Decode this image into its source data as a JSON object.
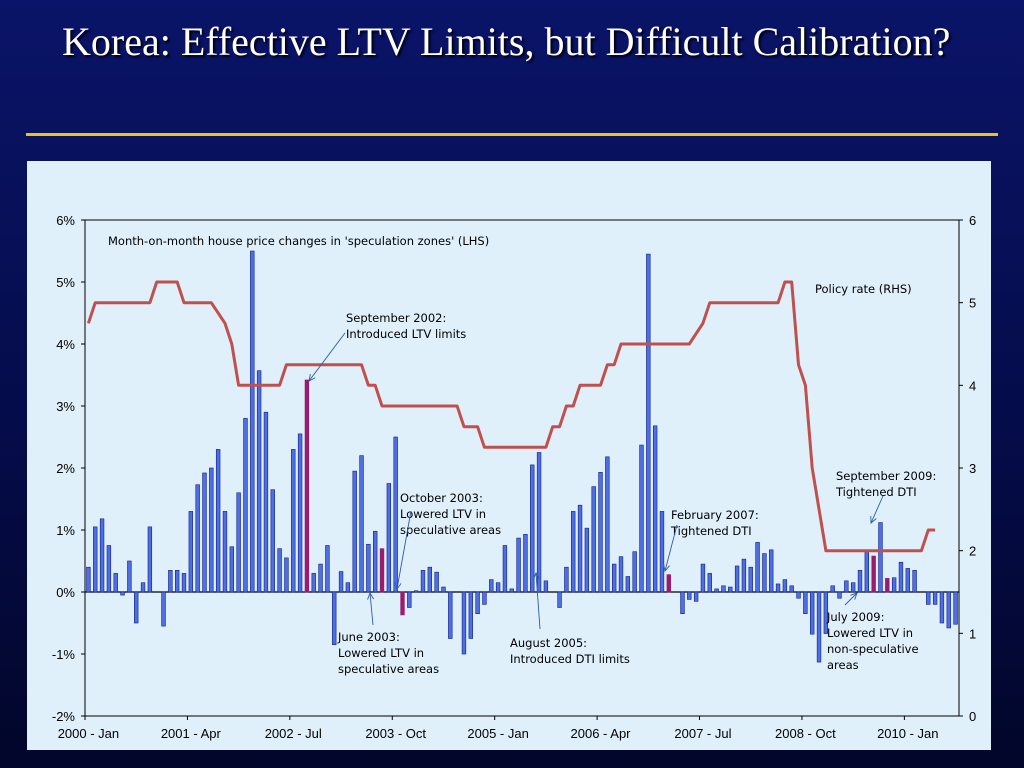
{
  "slide": {
    "title": "Korea: Effective LTV Limits, but Difficult Calibration?"
  },
  "colors": {
    "bar_fill": "#4f6fe0",
    "bar_edge": "#0d1f8c",
    "event_bar": "#9b1b6e",
    "policy_line": "#c0504d",
    "accent_rule": "#f0c020"
  },
  "chart_data": {
    "type": "bar+line",
    "x_tick_labels": [
      "2000 - Jan",
      "2001 - Apr",
      "2002 - Jul",
      "2003 - Oct",
      "2005 - Jan",
      "2006 - Apr",
      "2007 - Jul",
      "2008 - Oct",
      "2010 - Jan"
    ],
    "y_left": {
      "ticks": [
        "6%",
        "5%",
        "4%",
        "3%",
        "2%",
        "1%",
        "0%",
        "-1%",
        "-2%"
      ],
      "range": [
        -2,
        6
      ]
    },
    "y_right": {
      "ticks": [
        "6",
        "5",
        "4",
        "3",
        "2",
        "1",
        "0"
      ],
      "range": [
        0,
        6
      ]
    },
    "series": [
      {
        "name": "Month-on-month house price changes in 'speculation zones' (LHS)",
        "axis": "left",
        "kind": "bar",
        "values": [
          0.4,
          1.05,
          1.18,
          0.75,
          0.3,
          -0.05,
          0.5,
          -0.5,
          0.15,
          1.05,
          0.0,
          -0.55,
          0.35,
          0.35,
          0.3,
          1.3,
          1.73,
          1.92,
          2.0,
          2.3,
          1.3,
          0.73,
          1.6,
          2.8,
          5.5,
          3.57,
          2.9,
          1.65,
          0.7,
          0.55,
          2.3,
          2.55,
          3.42,
          0.3,
          0.45,
          0.75,
          -0.85,
          0.33,
          0.15,
          1.95,
          2.2,
          0.77,
          0.98,
          0.7,
          1.75,
          2.5,
          -0.37,
          -0.25,
          0.02,
          0.35,
          0.4,
          0.32,
          0.08,
          -0.75,
          0.0,
          -1.0,
          -0.75,
          -0.35,
          -0.2,
          0.2,
          0.15,
          0.75,
          0.05,
          0.87,
          0.93,
          2.05,
          2.25,
          0.18,
          0.0,
          -0.25,
          0.4,
          1.3,
          1.4,
          1.03,
          1.7,
          1.93,
          2.18,
          0.45,
          0.57,
          0.25,
          0.65,
          2.37,
          5.45,
          2.68,
          1.3,
          0.28,
          0.0,
          -0.35,
          -0.12,
          -0.15,
          0.45,
          0.3,
          0.05,
          0.1,
          0.08,
          0.42,
          0.53,
          0.4,
          0.8,
          0.62,
          0.68,
          0.13,
          0.2,
          0.1,
          -0.1,
          -0.35,
          -0.68,
          -1.13,
          -0.67,
          0.1,
          -0.1,
          0.18,
          0.15,
          0.35,
          0.68,
          0.58,
          1.12,
          0.22,
          0.23,
          0.48,
          0.38,
          0.35,
          0.0,
          -0.2,
          -0.2,
          -0.5,
          -0.58,
          -0.52
        ],
        "highlight_indices": [
          32,
          43,
          46,
          68,
          85,
          115,
          117
        ]
      },
      {
        "name": "Policy rate (RHS)",
        "axis": "right",
        "kind": "line",
        "points": [
          [
            0,
            4.75
          ],
          [
            1,
            5.0
          ],
          [
            9,
            5.0
          ],
          [
            10,
            5.25
          ],
          [
            13,
            5.25
          ],
          [
            14,
            5.0
          ],
          [
            18,
            5.0
          ],
          [
            20,
            4.75
          ],
          [
            21,
            4.5
          ],
          [
            22,
            4.0
          ],
          [
            28,
            4.0
          ],
          [
            29,
            4.25
          ],
          [
            40,
            4.25
          ],
          [
            41,
            4.0
          ],
          [
            42,
            4.0
          ],
          [
            43,
            3.75
          ],
          [
            54,
            3.75
          ],
          [
            55,
            3.5
          ],
          [
            57,
            3.5
          ],
          [
            58,
            3.25
          ],
          [
            67,
            3.25
          ],
          [
            68,
            3.5
          ],
          [
            69,
            3.5
          ],
          [
            70,
            3.75
          ],
          [
            71,
            3.75
          ],
          [
            72,
            4.0
          ],
          [
            75,
            4.0
          ],
          [
            76,
            4.25
          ],
          [
            77,
            4.25
          ],
          [
            78,
            4.5
          ],
          [
            88,
            4.5
          ],
          [
            90,
            4.75
          ],
          [
            91,
            5.0
          ],
          [
            101,
            5.0
          ],
          [
            102,
            5.25
          ],
          [
            103,
            5.25
          ],
          [
            104,
            4.25
          ],
          [
            105,
            4.0
          ],
          [
            106,
            3.0
          ],
          [
            108,
            2.0
          ],
          [
            122,
            2.0
          ],
          [
            123,
            2.25
          ],
          [
            124,
            2.25
          ]
        ]
      }
    ],
    "annotations": [
      {
        "lines": [
          "Month-on-month house price changes in 'speculation zones' (LHS)"
        ]
      },
      {
        "lines": [
          "Policy rate (RHS)"
        ]
      },
      {
        "lines": [
          "September 2002:",
          "Introduced LTV limits"
        ]
      },
      {
        "lines": [
          "October 2003:",
          "Lowered LTV in",
          "speculative areas"
        ]
      },
      {
        "lines": [
          "June 2003:",
          "Lowered LTV in",
          "speculative areas"
        ]
      },
      {
        "lines": [
          "August 2005:",
          "Introduced DTI limits"
        ]
      },
      {
        "lines": [
          "February 2007:",
          "Tightened DTI"
        ]
      },
      {
        "lines": [
          "September 2009:",
          "Tightened DTI"
        ]
      },
      {
        "lines": [
          "July 2009:",
          "Lowered LTV in",
          "non-speculative",
          "areas"
        ]
      }
    ],
    "grid": false,
    "legend": "none"
  }
}
